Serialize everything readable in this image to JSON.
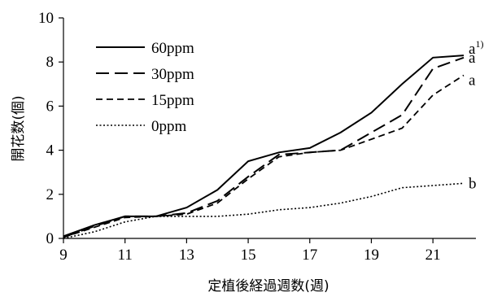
{
  "chart_data": {
    "type": "line",
    "xlabel": "定植後経過週数(週)",
    "ylabel": "開花数(個)",
    "xlim": [
      9,
      22
    ],
    "ylim": [
      0,
      10
    ],
    "x_ticks": [
      9,
      11,
      13,
      15,
      17,
      19,
      21
    ],
    "y_ticks": [
      0,
      2,
      4,
      6,
      8,
      10
    ],
    "grid": false,
    "legend_position": "left",
    "x": [
      9,
      10,
      11,
      12,
      13,
      14,
      15,
      16,
      17,
      18,
      19,
      20,
      21,
      22
    ],
    "series": [
      {
        "name": "60ppm",
        "dash": "solid",
        "values": [
          0.1,
          0.6,
          1.0,
          1.0,
          1.4,
          2.2,
          3.5,
          3.9,
          4.1,
          4.8,
          5.7,
          7.0,
          8.2,
          8.3
        ],
        "end_label": "a",
        "end_label_sup": "1)"
      },
      {
        "name": "30ppm",
        "dash": "dashed",
        "values": [
          0.05,
          0.55,
          1.0,
          1.0,
          1.15,
          1.7,
          2.8,
          3.8,
          3.9,
          4.0,
          4.8,
          5.6,
          7.7,
          8.2
        ],
        "end_label": "a",
        "end_label_sup": ""
      },
      {
        "name": "15ppm",
        "dash": "short-dashed",
        "values": [
          0.05,
          0.5,
          0.95,
          1.0,
          1.1,
          1.6,
          2.7,
          3.7,
          3.9,
          4.0,
          4.5,
          5.0,
          6.5,
          7.4
        ],
        "end_label": "a",
        "end_label_sup": ""
      },
      {
        "name": "0ppm",
        "dash": "dotted",
        "values": [
          0.0,
          0.3,
          0.75,
          1.0,
          1.0,
          1.0,
          1.1,
          1.3,
          1.4,
          1.6,
          1.9,
          2.3,
          2.4,
          2.5
        ],
        "end_label": "b",
        "end_label_sup": ""
      }
    ]
  }
}
